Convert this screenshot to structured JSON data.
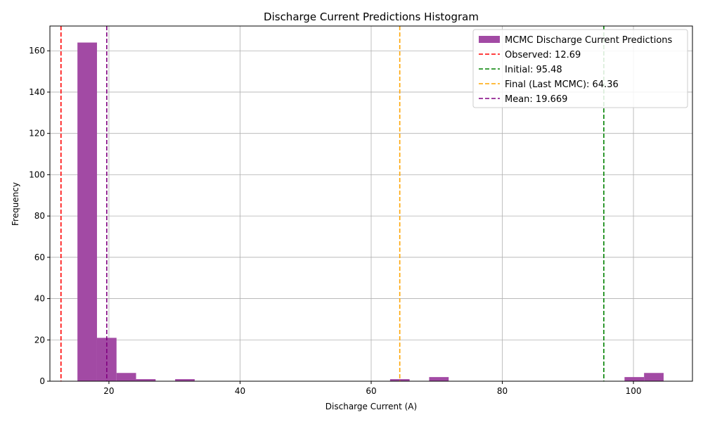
{
  "chart_data": {
    "type": "bar",
    "title": "Discharge Current Predictions Histogram",
    "xlabel": "Discharge Current (A)",
    "ylabel": "Frequency",
    "xlim": [
      11.0,
      109.0
    ],
    "ylim": [
      0,
      172
    ],
    "xticks": [
      20,
      40,
      60,
      80,
      100
    ],
    "yticks": [
      0,
      20,
      40,
      60,
      80,
      100,
      120,
      140,
      160
    ],
    "grid": true,
    "legend_position": "top-right",
    "bin_width": 2.98,
    "histogram": {
      "name": "MCMC Discharge Current Predictions",
      "color": "#a24aa4",
      "bins": [
        {
          "x0": 15.2,
          "x1": 18.18,
          "count": 164
        },
        {
          "x0": 18.18,
          "x1": 21.16,
          "count": 21
        },
        {
          "x0": 21.16,
          "x1": 24.14,
          "count": 4
        },
        {
          "x0": 24.14,
          "x1": 27.12,
          "count": 1
        },
        {
          "x0": 30.1,
          "x1": 33.08,
          "count": 1
        },
        {
          "x0": 62.88,
          "x1": 65.86,
          "count": 1
        },
        {
          "x0": 68.84,
          "x1": 71.82,
          "count": 2
        },
        {
          "x0": 98.64,
          "x1": 101.62,
          "count": 2
        },
        {
          "x0": 101.62,
          "x1": 104.6,
          "count": 4
        }
      ]
    },
    "vlines": [
      {
        "name": "Observed: 12.69",
        "x": 12.69,
        "color": "#ff0000"
      },
      {
        "name": "Initial: 95.48",
        "x": 95.48,
        "color": "#008000"
      },
      {
        "name": "Final (Last MCMC): 64.36",
        "x": 64.36,
        "color": "#ffa500"
      },
      {
        "name": "Mean: 19.669",
        "x": 19.669,
        "color": "#800080"
      }
    ]
  }
}
